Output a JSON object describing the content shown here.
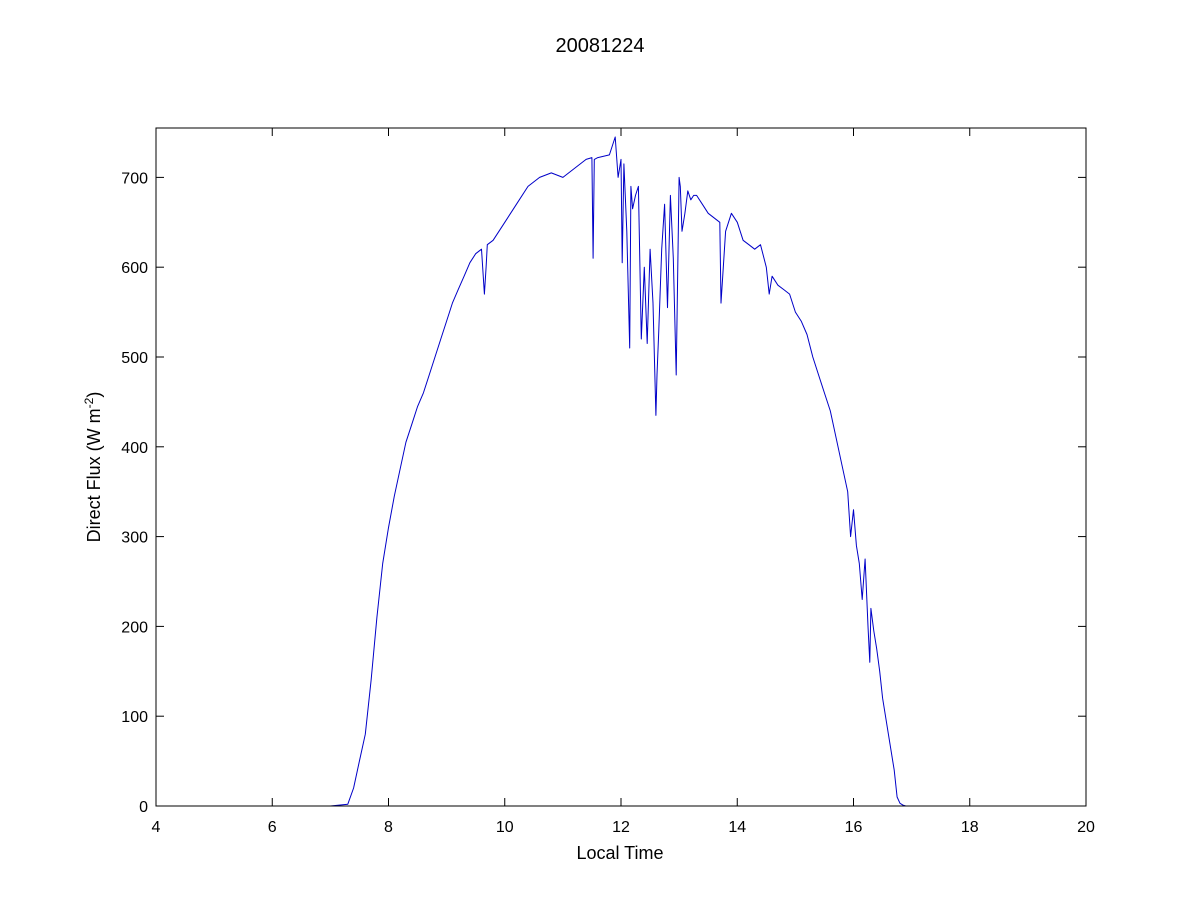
{
  "chart_data": {
    "type": "line",
    "title": "20081224",
    "xlabel": "Local Time",
    "ylabel": "Direct Flux (W m",
    "ylabel_sup": "-2",
    "ylabel_close": ")",
    "xlim": [
      4,
      20
    ],
    "ylim": [
      0,
      755
    ],
    "xticks": [
      4,
      6,
      8,
      10,
      12,
      14,
      16,
      18,
      20
    ],
    "xtick_labels": [
      "4",
      "6",
      "8",
      "10",
      "12",
      "14",
      "16",
      "18",
      "20"
    ],
    "yticks": [
      0,
      100,
      200,
      300,
      400,
      500,
      600,
      700
    ],
    "ytick_labels": [
      "0",
      "100",
      "200",
      "300",
      "400",
      "500",
      "600",
      "700"
    ],
    "grid": false,
    "line_color": "#0000c8",
    "series": [
      {
        "x": [
          4.0,
          4.5,
          5.0,
          5.5,
          6.0,
          6.5,
          7.0,
          7.3,
          7.4,
          7.5,
          7.6,
          7.7,
          7.8,
          7.9,
          8.0,
          8.1,
          8.2,
          8.3,
          8.4,
          8.5,
          8.6,
          8.7,
          8.8,
          8.9,
          9.0,
          9.1,
          9.2,
          9.3,
          9.4,
          9.5,
          9.6,
          9.65,
          9.68,
          9.7,
          9.8,
          10.0,
          10.2,
          10.4,
          10.6,
          10.8,
          11.0,
          11.2,
          11.4,
          11.5,
          11.52,
          11.54,
          11.6,
          11.8,
          11.9,
          11.95,
          12.0,
          12.02,
          12.05,
          12.1,
          12.15,
          12.17,
          12.2,
          12.25,
          12.3,
          12.35,
          12.4,
          12.45,
          12.5,
          12.55,
          12.6,
          12.62,
          12.65,
          12.7,
          12.75,
          12.8,
          12.85,
          12.9,
          12.95,
          13.0,
          13.02,
          13.05,
          13.1,
          13.15,
          13.2,
          13.25,
          13.3,
          13.4,
          13.5,
          13.6,
          13.7,
          13.72,
          13.8,
          13.9,
          14.0,
          14.1,
          14.2,
          14.3,
          14.4,
          14.5,
          14.55,
          14.6,
          14.7,
          14.8,
          14.9,
          15.0,
          15.1,
          15.2,
          15.3,
          15.4,
          15.5,
          15.6,
          15.7,
          15.8,
          15.9,
          15.95,
          16.0,
          16.05,
          16.1,
          16.15,
          16.2,
          16.25,
          16.28,
          16.3,
          16.35,
          16.4,
          16.45,
          16.5,
          16.6,
          16.7,
          16.75,
          16.8,
          16.85,
          16.9,
          17.0,
          17.1,
          19.0,
          19.3
        ],
        "y": [
          0,
          0,
          0,
          0,
          0,
          0,
          0,
          2,
          20,
          50,
          80,
          140,
          210,
          270,
          310,
          345,
          375,
          405,
          425,
          445,
          460,
          480,
          500,
          520,
          540,
          560,
          575,
          590,
          605,
          615,
          620,
          570,
          600,
          625,
          630,
          650,
          670,
          690,
          700,
          705,
          700,
          710,
          720,
          722,
          610,
          720,
          722,
          725,
          745,
          700,
          720,
          605,
          715,
          640,
          510,
          690,
          665,
          680,
          690,
          520,
          600,
          515,
          620,
          560,
          435,
          480,
          530,
          620,
          670,
          555,
          680,
          610,
          480,
          700,
          690,
          640,
          660,
          685,
          675,
          680,
          680,
          670,
          660,
          655,
          650,
          560,
          640,
          660,
          650,
          630,
          625,
          620,
          625,
          600,
          570,
          590,
          580,
          575,
          570,
          550,
          540,
          525,
          500,
          480,
          460,
          440,
          410,
          380,
          350,
          300,
          330,
          290,
          270,
          230,
          275,
          200,
          160,
          220,
          195,
          175,
          150,
          120,
          80,
          40,
          10,
          3,
          1,
          0,
          0,
          0,
          0,
          0
        ]
      }
    ]
  }
}
